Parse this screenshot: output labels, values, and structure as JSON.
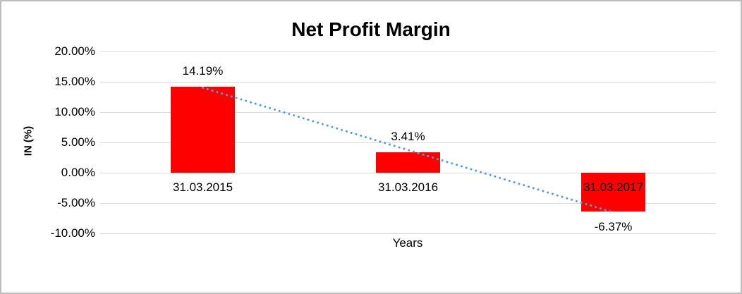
{
  "frame": {
    "background": "#ffffff",
    "border_color": "#bdbdbd"
  },
  "chart_data": {
    "type": "bar",
    "title": "Net Profit Margin",
    "xlabel": "Years",
    "ylabel": "IN (%)",
    "categories": [
      "31.03.2015",
      "31.03.2016",
      "31.03.2017"
    ],
    "values": [
      14.19,
      3.41,
      -6.37
    ],
    "data_labels": [
      "14.19%",
      "3.41%",
      "-6.37%"
    ],
    "ylim": [
      -10,
      20
    ],
    "ytick_values": [
      20,
      15,
      10,
      5,
      0,
      -5,
      -10
    ],
    "ytick_labels": [
      "20.00%",
      "15.00%",
      "10.00%",
      "5.00%",
      "0.00%",
      "-5.00%",
      "-10.00%"
    ],
    "bar_color": "#ff0000",
    "gridline_color": "#d9d9d9",
    "text_color": "#000000",
    "grid": true,
    "legend": "none",
    "trendline": {
      "type": "linear",
      "style": "round-dot",
      "color": "#5b9bd5"
    }
  }
}
